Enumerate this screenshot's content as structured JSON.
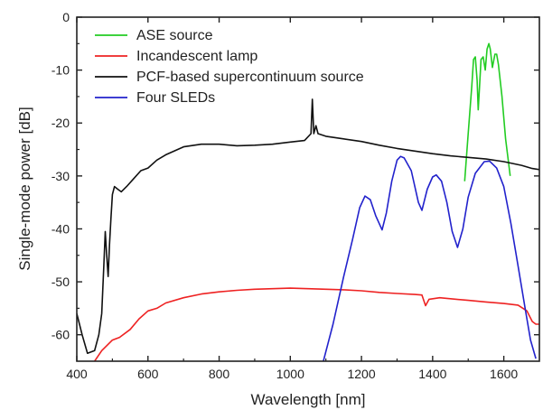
{
  "chart_data": {
    "type": "line",
    "xlabel": "Wavelength [nm]",
    "ylabel": "Single-mode power [dB]",
    "xlim": [
      400,
      1700
    ],
    "ylim": [
      -65,
      0
    ],
    "xticks": [
      400,
      600,
      800,
      1000,
      1200,
      1400,
      1600
    ],
    "xtick_labels": [
      "400",
      "600",
      "800",
      "1000",
      "1200",
      "1400",
      "1600"
    ],
    "yticks": [
      0,
      -10,
      -20,
      -30,
      -40,
      -50,
      -60
    ],
    "ytick_labels": [
      "0",
      "-10",
      "-20",
      "-30",
      "-40",
      "-50",
      "-60"
    ],
    "legend_position": "top-left",
    "grid": false,
    "series": [
      {
        "name": "ASE source",
        "color": "#22cc22",
        "points": [
          [
            1490,
            -31
          ],
          [
            1500,
            -22
          ],
          [
            1510,
            -13
          ],
          [
            1515,
            -8
          ],
          [
            1520,
            -7.5
          ],
          [
            1525,
            -12
          ],
          [
            1528,
            -17.5
          ],
          [
            1532,
            -13
          ],
          [
            1536,
            -8
          ],
          [
            1542,
            -7.5
          ],
          [
            1548,
            -10
          ],
          [
            1553,
            -6
          ],
          [
            1558,
            -5
          ],
          [
            1562,
            -6
          ],
          [
            1568,
            -9.5
          ],
          [
            1575,
            -7
          ],
          [
            1580,
            -7
          ],
          [
            1585,
            -9
          ],
          [
            1595,
            -15
          ],
          [
            1605,
            -23
          ],
          [
            1618,
            -30
          ]
        ]
      },
      {
        "name": "Incandescent lamp",
        "color": "#ee2222",
        "points": [
          [
            450,
            -65
          ],
          [
            470,
            -63
          ],
          [
            500,
            -61
          ],
          [
            520,
            -60.5
          ],
          [
            550,
            -59
          ],
          [
            575,
            -57
          ],
          [
            600,
            -55.5
          ],
          [
            625,
            -55
          ],
          [
            650,
            -54
          ],
          [
            700,
            -53
          ],
          [
            750,
            -52.3
          ],
          [
            800,
            -51.9
          ],
          [
            850,
            -51.6
          ],
          [
            900,
            -51.4
          ],
          [
            950,
            -51.3
          ],
          [
            1000,
            -51.2
          ],
          [
            1050,
            -51.3
          ],
          [
            1100,
            -51.4
          ],
          [
            1150,
            -51.5
          ],
          [
            1200,
            -51.7
          ],
          [
            1250,
            -52
          ],
          [
            1300,
            -52.2
          ],
          [
            1350,
            -52.4
          ],
          [
            1370,
            -52.5
          ],
          [
            1380,
            -54.5
          ],
          [
            1390,
            -53.3
          ],
          [
            1420,
            -53
          ],
          [
            1450,
            -53.2
          ],
          [
            1500,
            -53.5
          ],
          [
            1550,
            -53.8
          ],
          [
            1600,
            -54.1
          ],
          [
            1640,
            -54.4
          ],
          [
            1665,
            -55.5
          ],
          [
            1680,
            -57.5
          ],
          [
            1690,
            -58
          ],
          [
            1700,
            -58
          ]
        ]
      },
      {
        "name": "PCF-based supercontinuum source",
        "color": "#111111",
        "points": [
          [
            400,
            -56
          ],
          [
            415,
            -60
          ],
          [
            430,
            -63.5
          ],
          [
            450,
            -63
          ],
          [
            462,
            -60
          ],
          [
            470,
            -56
          ],
          [
            476,
            -47
          ],
          [
            480,
            -40.5
          ],
          [
            484,
            -45
          ],
          [
            488,
            -49
          ],
          [
            492,
            -43
          ],
          [
            496,
            -38
          ],
          [
            500,
            -33.5
          ],
          [
            506,
            -32
          ],
          [
            515,
            -32.5
          ],
          [
            525,
            -33
          ],
          [
            540,
            -32
          ],
          [
            560,
            -30.5
          ],
          [
            580,
            -29
          ],
          [
            600,
            -28.5
          ],
          [
            625,
            -27
          ],
          [
            650,
            -26
          ],
          [
            700,
            -24.5
          ],
          [
            750,
            -24
          ],
          [
            800,
            -24
          ],
          [
            850,
            -24.3
          ],
          [
            900,
            -24.2
          ],
          [
            950,
            -24
          ],
          [
            1000,
            -23.6
          ],
          [
            1040,
            -23.3
          ],
          [
            1058,
            -22
          ],
          [
            1062,
            -15.5
          ],
          [
            1066,
            -22
          ],
          [
            1072,
            -20.5
          ],
          [
            1078,
            -22
          ],
          [
            1100,
            -22.5
          ],
          [
            1150,
            -23
          ],
          [
            1200,
            -23.5
          ],
          [
            1250,
            -24.2
          ],
          [
            1300,
            -24.8
          ],
          [
            1350,
            -25.3
          ],
          [
            1400,
            -25.8
          ],
          [
            1450,
            -26.2
          ],
          [
            1500,
            -26.5
          ],
          [
            1550,
            -26.8
          ],
          [
            1600,
            -27.3
          ],
          [
            1650,
            -28
          ],
          [
            1680,
            -28.6
          ],
          [
            1700,
            -28.8
          ]
        ]
      },
      {
        "name": "Four SLEDs",
        "color": "#2222cc",
        "points": [
          [
            1093,
            -65
          ],
          [
            1120,
            -58
          ],
          [
            1150,
            -49
          ],
          [
            1175,
            -42
          ],
          [
            1195,
            -36
          ],
          [
            1210,
            -33.8
          ],
          [
            1225,
            -34.5
          ],
          [
            1240,
            -37.5
          ],
          [
            1258,
            -40.2
          ],
          [
            1270,
            -37
          ],
          [
            1285,
            -31
          ],
          [
            1300,
            -27
          ],
          [
            1310,
            -26.3
          ],
          [
            1320,
            -26.6
          ],
          [
            1340,
            -29
          ],
          [
            1360,
            -35
          ],
          [
            1370,
            -36.5
          ],
          [
            1385,
            -32.5
          ],
          [
            1400,
            -30.2
          ],
          [
            1410,
            -29.8
          ],
          [
            1425,
            -31
          ],
          [
            1440,
            -35
          ],
          [
            1455,
            -40.5
          ],
          [
            1470,
            -43.5
          ],
          [
            1485,
            -40
          ],
          [
            1500,
            -34
          ],
          [
            1520,
            -29.5
          ],
          [
            1545,
            -27.3
          ],
          [
            1560,
            -27.2
          ],
          [
            1580,
            -28.5
          ],
          [
            1600,
            -32
          ],
          [
            1620,
            -39
          ],
          [
            1640,
            -47
          ],
          [
            1660,
            -55
          ],
          [
            1675,
            -61
          ],
          [
            1690,
            -64.5
          ]
        ]
      }
    ]
  }
}
